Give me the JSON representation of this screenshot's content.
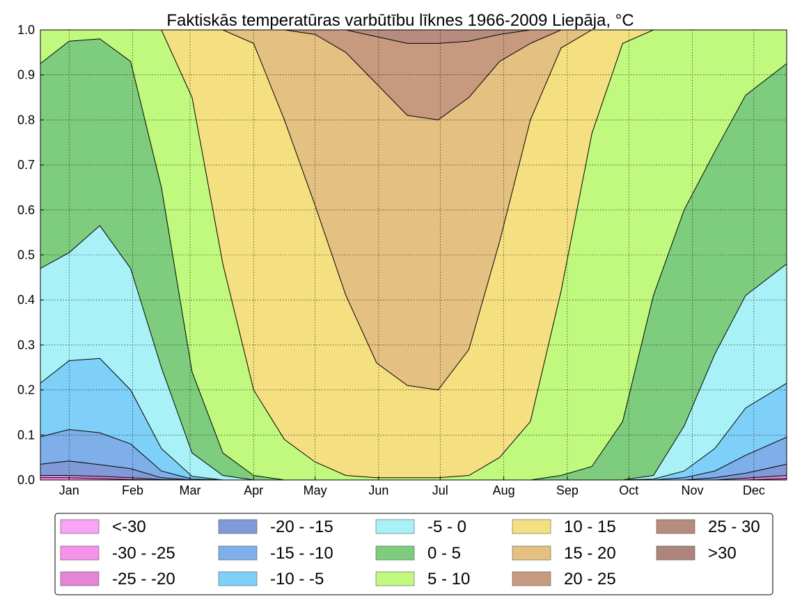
{
  "chart_data": {
    "type": "area",
    "stacked": true,
    "title": "Faktiskās temperatūras varbūtību līknes 1966-2009 Liepāja, ",
    "title_unit": "°C",
    "xlabel": "",
    "ylabel": "",
    "ylim": [
      0,
      1
    ],
    "yticks": [
      "0.0",
      "0.1",
      "0.2",
      "0.3",
      "0.4",
      "0.5",
      "0.6",
      "0.7",
      "0.8",
      "0.9",
      "1.0"
    ],
    "months": [
      "Jan",
      "Feb",
      "Mar",
      "Apr",
      "May",
      "Jun",
      "Jul",
      "Aug",
      "Sep",
      "Oct",
      "Nov",
      "Dec"
    ],
    "grid": true,
    "legend_location": "bottom",
    "x_day": [
      1,
      15,
      30,
      45,
      60,
      75,
      90,
      105,
      120,
      135,
      150,
      165,
      180,
      195,
      210,
      225,
      240,
      255,
      270,
      285,
      300,
      315,
      330,
      345,
      365
    ],
    "cumulative_upper_bounds": [
      {
        "label": "<-30",
        "values": [
          0,
          0,
          0,
          0,
          0,
          0,
          0,
          0,
          0,
          0,
          0,
          0,
          0,
          0,
          0,
          0,
          0,
          0,
          0,
          0,
          0,
          0,
          0,
          0,
          0
        ]
      },
      {
        "label": "-30 - -25",
        "values": [
          0.005,
          0.005,
          0.003,
          0.001,
          0,
          0,
          0,
          0,
          0,
          0,
          0,
          0,
          0,
          0,
          0,
          0,
          0,
          0,
          0,
          0,
          0,
          0,
          0,
          0,
          0.003
        ]
      },
      {
        "label": "-25 - -20",
        "values": [
          0.01,
          0.01,
          0.008,
          0.005,
          0.001,
          0,
          0,
          0,
          0,
          0,
          0,
          0,
          0,
          0,
          0,
          0,
          0,
          0,
          0,
          0,
          0,
          0,
          0,
          0.004,
          0.01
        ]
      },
      {
        "label": "-20 - -15",
        "values": [
          0.035,
          0.042,
          0.034,
          0.025,
          0.005,
          0,
          0,
          0,
          0,
          0,
          0,
          0,
          0,
          0,
          0,
          0,
          0,
          0,
          0,
          0,
          0,
          0,
          0.005,
          0.015,
          0.035
        ]
      },
      {
        "label": "-15 - -10",
        "values": [
          0.096,
          0.112,
          0.105,
          0.08,
          0.02,
          0.002,
          0,
          0,
          0,
          0,
          0,
          0,
          0,
          0,
          0,
          0,
          0,
          0,
          0,
          0,
          0,
          0.005,
          0.02,
          0.055,
          0.095
        ]
      },
      {
        "label": "-10 - -5",
        "values": [
          0.215,
          0.265,
          0.27,
          0.2,
          0.07,
          0.008,
          0,
          0,
          0,
          0,
          0,
          0,
          0,
          0,
          0,
          0,
          0,
          0,
          0,
          0,
          0.002,
          0.02,
          0.07,
          0.16,
          0.215
        ]
      },
      {
        "label": "-5 - 0",
        "values": [
          0.47,
          0.505,
          0.565,
          0.47,
          0.25,
          0.06,
          0.01,
          0,
          0,
          0,
          0,
          0,
          0,
          0,
          0,
          0,
          0,
          0,
          0,
          0,
          0.01,
          0.12,
          0.28,
          0.41,
          0.48
        ]
      },
      {
        "label": "0 - 5",
        "values": [
          0.925,
          0.975,
          0.98,
          0.93,
          0.65,
          0.24,
          0.06,
          0.01,
          0,
          0,
          0,
          0,
          0,
          0,
          0,
          0,
          0,
          0.01,
          0.03,
          0.13,
          0.41,
          0.6,
          0.73,
          0.855,
          0.925
        ]
      },
      {
        "label": "5 - 10",
        "values": [
          1,
          1,
          1,
          1,
          1,
          0.85,
          0.48,
          0.2,
          0.09,
          0.04,
          0.01,
          0.005,
          0.005,
          0.005,
          0.01,
          0.05,
          0.13,
          0.42,
          0.77,
          0.97,
          1,
          1,
          1,
          1,
          1
        ]
      },
      {
        "label": "10 - 15",
        "values": [
          1,
          1,
          1,
          1,
          1,
          1,
          1,
          0.97,
          0.8,
          0.61,
          0.41,
          0.26,
          0.21,
          0.2,
          0.29,
          0.53,
          0.8,
          0.96,
          1,
          1,
          1,
          1,
          1,
          1,
          1
        ]
      },
      {
        "label": "15 - 20",
        "values": [
          1,
          1,
          1,
          1,
          1,
          1,
          1,
          1,
          1,
          0.99,
          0.95,
          0.88,
          0.81,
          0.8,
          0.85,
          0.93,
          0.97,
          1,
          1,
          1,
          1,
          1,
          1,
          1,
          1
        ]
      },
      {
        "label": "20 - 25",
        "values": [
          1,
          1,
          1,
          1,
          1,
          1,
          1,
          1,
          1,
          1,
          1,
          0.985,
          0.97,
          0.97,
          0.975,
          0.99,
          1,
          1,
          1,
          1,
          1,
          1,
          1,
          1,
          1
        ]
      },
      {
        "label": "25 - 30",
        "values": [
          1,
          1,
          1,
          1,
          1,
          1,
          1,
          1,
          1,
          1,
          1,
          1,
          1,
          1,
          1,
          1,
          1,
          1,
          1,
          1,
          1,
          1,
          1,
          1,
          1
        ]
      },
      {
        "label": ">30",
        "values": [
          1,
          1,
          1,
          1,
          1,
          1,
          1,
          1,
          1,
          1,
          1,
          1,
          1,
          1,
          1,
          1,
          1,
          1,
          1,
          1,
          1,
          1,
          1,
          1,
          1
        ]
      }
    ],
    "legend": [
      {
        "label": "<-30",
        "color": "#f9a4f5"
      },
      {
        "label": "-30 - -25",
        "color": "#f592ea"
      },
      {
        "label": "-25 - -20",
        "color": "#e585d5"
      },
      {
        "label": "-20 - -15",
        "color": "#7f9ad6"
      },
      {
        "label": "-15 - -10",
        "color": "#7fafe8"
      },
      {
        "label": "-10 - -5",
        "color": "#7fd0f8"
      },
      {
        "label": "-5 - 0",
        "color": "#a8f1f7"
      },
      {
        "label": "0 - 5",
        "color": "#7ecd7e"
      },
      {
        "label": "5 - 10",
        "color": "#c0f97e"
      },
      {
        "label": "10 - 15",
        "color": "#f5e081"
      },
      {
        "label": "15 - 20",
        "color": "#e4c180"
      },
      {
        "label": "20 - 25",
        "color": "#c79a80"
      },
      {
        "label": "25 - 30",
        "color": "#b68c7e"
      },
      {
        "label": ">30",
        "color": "#ad857b"
      }
    ]
  }
}
